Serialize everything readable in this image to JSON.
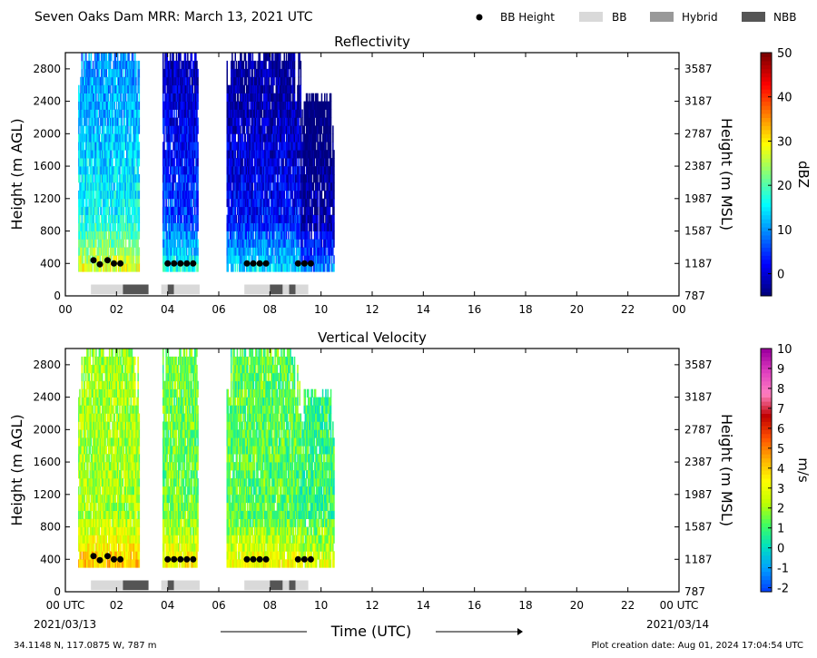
{
  "header": {
    "title": "Seven Oaks Dam MRR:  March 13, 2021 UTC",
    "legend": [
      {
        "label": "BB Height",
        "kind": "dot",
        "color": "#000000"
      },
      {
        "label": "BB",
        "kind": "box",
        "color": "#d9d9d9"
      },
      {
        "label": "Hybrid",
        "kind": "box",
        "color": "#999999"
      },
      {
        "label": "NBB",
        "kind": "box",
        "color": "#555555"
      }
    ]
  },
  "footer": {
    "location": "34.1148 N, 117.0875 W, 787 m",
    "creation": "Plot creation date: Aug 01, 2024 17:04:54 UTC",
    "xlabel": "Time (UTC)",
    "start_date": "2021/03/13",
    "end_date": "2021/03/14"
  },
  "chart_data": [
    {
      "type": "heatmap",
      "title": "Reflectivity",
      "ylabel": "Height (m AGL)",
      "y2label": "Height (m MSL)",
      "cbar_label": "dBZ",
      "xlim": [
        0,
        24
      ],
      "ylim": [
        0,
        3000
      ],
      "xticks": [
        "00",
        "02",
        "04",
        "06",
        "08",
        "10",
        "12",
        "14",
        "16",
        "18",
        "20",
        "22",
        "00"
      ],
      "yticks": [
        0,
        400,
        800,
        1200,
        1600,
        2000,
        2400,
        2800
      ],
      "y2ticks": [
        "787",
        "1187",
        "1587",
        "1987",
        "2387",
        "2787",
        "3187",
        "3587"
      ],
      "cbar_range": [
        -5,
        50
      ],
      "cbar_ticks": [
        0,
        10,
        20,
        30,
        40,
        50
      ],
      "colorscale": [
        "#00007f",
        "#0000ff",
        "#007fff",
        "#00ffff",
        "#7fff7f",
        "#ffff00",
        "#ff7f00",
        "#ff0000",
        "#7f0000"
      ],
      "precip_periods": [
        {
          "start": 0.5,
          "end": 2.9,
          "top": 3000,
          "intensity": 0.45
        },
        {
          "start": 3.8,
          "end": 5.2,
          "top": 3000,
          "intensity": 0.25
        },
        {
          "start": 6.3,
          "end": 9.2,
          "top": 3000,
          "intensity": 0.2
        },
        {
          "start": 9.2,
          "end": 10.5,
          "top": 2500,
          "intensity": 0.1
        }
      ],
      "bb_height_points": [
        {
          "t": 1.1,
          "h": 440
        },
        {
          "t": 1.35,
          "h": 390
        },
        {
          "t": 1.65,
          "h": 440
        },
        {
          "t": 1.9,
          "h": 400
        },
        {
          "t": 2.15,
          "h": 400
        },
        {
          "t": 4.0,
          "h": 400
        },
        {
          "t": 4.25,
          "h": 400
        },
        {
          "t": 4.5,
          "h": 400
        },
        {
          "t": 4.75,
          "h": 400
        },
        {
          "t": 5.0,
          "h": 400
        },
        {
          "t": 7.1,
          "h": 400
        },
        {
          "t": 7.35,
          "h": 400
        },
        {
          "t": 7.6,
          "h": 400
        },
        {
          "t": 7.85,
          "h": 400
        },
        {
          "t": 9.1,
          "h": 400
        },
        {
          "t": 9.35,
          "h": 400
        },
        {
          "t": 9.6,
          "h": 400
        }
      ],
      "bb_type_bars": [
        {
          "start": 1.0,
          "end": 2.25,
          "kind": "BB"
        },
        {
          "start": 2.25,
          "end": 3.25,
          "kind": "NBB"
        },
        {
          "start": 3.75,
          "end": 4.0,
          "kind": "BB"
        },
        {
          "start": 4.0,
          "end": 4.25,
          "kind": "NBB"
        },
        {
          "start": 4.25,
          "end": 5.25,
          "kind": "BB"
        },
        {
          "start": 7.0,
          "end": 8.0,
          "kind": "BB"
        },
        {
          "start": 8.0,
          "end": 8.5,
          "kind": "NBB"
        },
        {
          "start": 8.5,
          "end": 8.75,
          "kind": "BB"
        },
        {
          "start": 8.75,
          "end": 9.0,
          "kind": "NBB"
        },
        {
          "start": 9.0,
          "end": 9.5,
          "kind": "BB"
        }
      ]
    },
    {
      "type": "heatmap",
      "title": "Vertical Velocity",
      "ylabel": "Height (m AGL)",
      "y2label": "Height (m MSL)",
      "cbar_label": "m/s",
      "xlim": [
        0,
        24
      ],
      "ylim": [
        0,
        3000
      ],
      "xticks": [
        "00 UTC",
        "02",
        "04",
        "06",
        "08",
        "10",
        "12",
        "14",
        "16",
        "18",
        "20",
        "22",
        "00 UTC"
      ],
      "yticks": [
        0,
        400,
        800,
        1200,
        1600,
        2000,
        2400,
        2800
      ],
      "y2ticks": [
        "787",
        "1187",
        "1587",
        "1987",
        "2387",
        "2787",
        "3187",
        "3587"
      ],
      "cbar_range": [
        -2.2,
        10
      ],
      "cbar_ticks": [
        -2,
        -1,
        0,
        1,
        2,
        3,
        4,
        5,
        6,
        7,
        8,
        9,
        10
      ],
      "colorscale": [
        "#0044ff",
        "#00a0ff",
        "#00e0c0",
        "#40ff60",
        "#c0ff00",
        "#ffff00",
        "#ffb000",
        "#ff5000",
        "#c00000",
        "#ff80c0",
        "#e040c0",
        "#a000a0"
      ],
      "precip_periods": [
        {
          "start": 0.5,
          "end": 2.9,
          "top": 3000,
          "intensity": 0.35
        },
        {
          "start": 3.8,
          "end": 5.2,
          "top": 3000,
          "intensity": 0.3
        },
        {
          "start": 6.3,
          "end": 9.2,
          "top": 3000,
          "intensity": 0.28
        },
        {
          "start": 9.2,
          "end": 10.5,
          "top": 2500,
          "intensity": 0.25
        }
      ],
      "bb_height_points": [
        {
          "t": 1.1,
          "h": 440
        },
        {
          "t": 1.35,
          "h": 390
        },
        {
          "t": 1.65,
          "h": 440
        },
        {
          "t": 1.9,
          "h": 400
        },
        {
          "t": 2.15,
          "h": 400
        },
        {
          "t": 4.0,
          "h": 400
        },
        {
          "t": 4.25,
          "h": 400
        },
        {
          "t": 4.5,
          "h": 400
        },
        {
          "t": 4.75,
          "h": 400
        },
        {
          "t": 5.0,
          "h": 400
        },
        {
          "t": 7.1,
          "h": 400
        },
        {
          "t": 7.35,
          "h": 400
        },
        {
          "t": 7.6,
          "h": 400
        },
        {
          "t": 7.85,
          "h": 400
        },
        {
          "t": 9.1,
          "h": 400
        },
        {
          "t": 9.35,
          "h": 400
        },
        {
          "t": 9.6,
          "h": 400
        }
      ],
      "bb_type_bars": [
        {
          "start": 1.0,
          "end": 2.25,
          "kind": "BB"
        },
        {
          "start": 2.25,
          "end": 3.25,
          "kind": "NBB"
        },
        {
          "start": 3.75,
          "end": 4.0,
          "kind": "BB"
        },
        {
          "start": 4.0,
          "end": 4.25,
          "kind": "NBB"
        },
        {
          "start": 4.25,
          "end": 5.25,
          "kind": "BB"
        },
        {
          "start": 7.0,
          "end": 8.0,
          "kind": "BB"
        },
        {
          "start": 8.0,
          "end": 8.5,
          "kind": "NBB"
        },
        {
          "start": 8.5,
          "end": 8.75,
          "kind": "BB"
        },
        {
          "start": 8.75,
          "end": 9.0,
          "kind": "NBB"
        },
        {
          "start": 9.0,
          "end": 9.5,
          "kind": "BB"
        }
      ]
    }
  ]
}
